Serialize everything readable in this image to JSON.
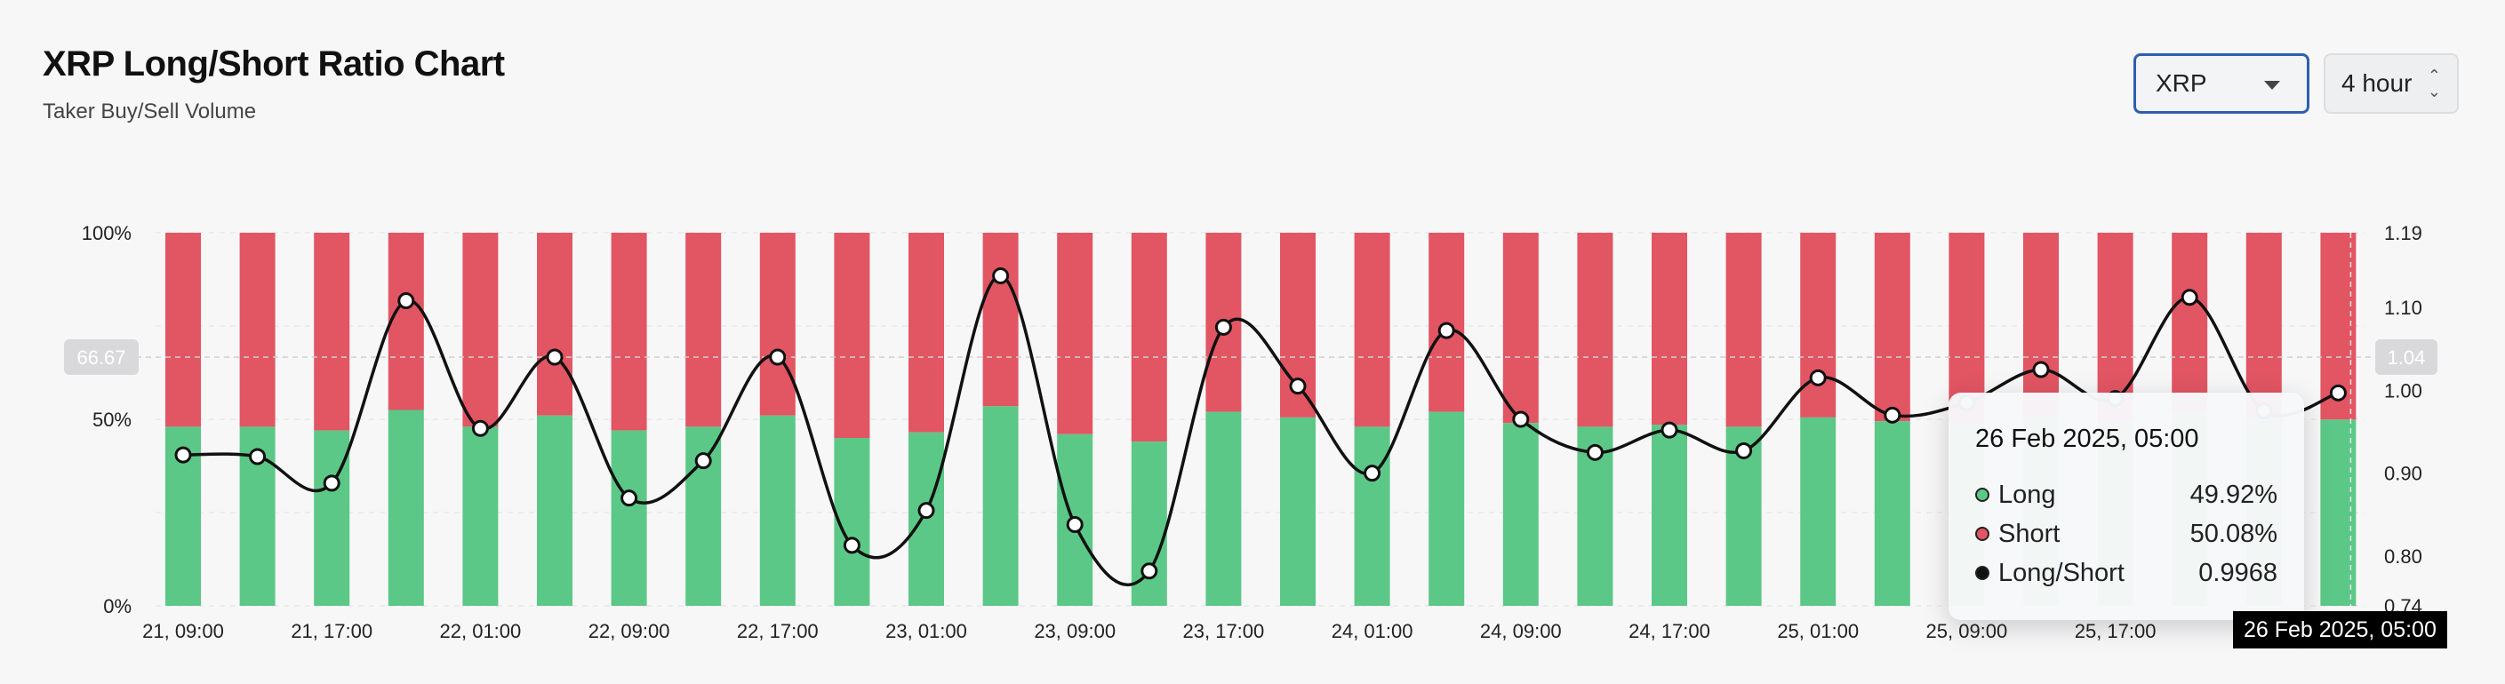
{
  "header": {
    "title": "XRP Long/Short Ratio Chart",
    "subtitle": "Taker Buy/Sell Volume"
  },
  "controls": {
    "symbol": "XRP",
    "interval": "4 hour"
  },
  "tooltip": {
    "date": "26 Feb 2025, 05:00",
    "rows": [
      {
        "label": "Long",
        "value": "49.92%",
        "color": "#5cc887"
      },
      {
        "label": "Short",
        "value": "50.08%",
        "color": "#e25563"
      },
      {
        "label": "Long/Short",
        "value": "0.9968",
        "color": "#111111"
      }
    ]
  },
  "crosshair": {
    "x_label": "26 Feb 2025, 05:00",
    "left_badge": "66.67",
    "right_badge": "1.04"
  },
  "chart_data": {
    "type": "bar",
    "colors": {
      "long": "#5cc887",
      "short": "#e25563",
      "ratio": "#111111"
    },
    "left_axis": {
      "ticks": [
        "100%",
        "50%",
        "0%"
      ],
      "range": [
        0,
        100
      ]
    },
    "right_axis": {
      "ticks": [
        "1.19",
        "1.10",
        "1.00",
        "0.90",
        "0.80",
        "0.74"
      ],
      "range": [
        0.74,
        1.19
      ]
    },
    "x_tick_labels": [
      "21, 09:00",
      "21, 17:00",
      "22, 01:00",
      "22, 09:00",
      "22, 17:00",
      "23, 01:00",
      "23, 09:00",
      "23, 17:00",
      "24, 01:00",
      "24, 09:00",
      "24, 17:00",
      "25, 01:00",
      "25, 09:00",
      "25, 17:00",
      "26"
    ],
    "x_tick_bar_index": [
      0,
      2,
      4,
      6,
      8,
      10,
      12,
      14,
      16,
      18,
      20,
      22,
      24,
      26,
      28
    ],
    "series": [
      {
        "name": "Long",
        "values": [
          48.0,
          48.0,
          47.0,
          52.5,
          48.0,
          51.0,
          47.0,
          48.0,
          51.0,
          45.0,
          46.5,
          53.5,
          46.0,
          44.0,
          52.0,
          50.5,
          48.0,
          52.0,
          49.0,
          48.0,
          48.5,
          48.0,
          50.5,
          49.5,
          49.0,
          51.0,
          49.5,
          52.0,
          50.0,
          49.92
        ]
      },
      {
        "name": "Long/Short",
        "values": [
          0.922,
          0.92,
          0.888,
          1.108,
          0.954,
          1.04,
          0.87,
          0.915,
          1.04,
          0.813,
          0.855,
          1.138,
          0.838,
          0.782,
          1.076,
          1.005,
          0.9,
          1.072,
          0.965,
          0.925,
          0.952,
          0.927,
          1.015,
          0.97,
          0.985,
          1.025,
          0.99,
          1.112,
          0.975,
          0.9968
        ]
      }
    ]
  }
}
